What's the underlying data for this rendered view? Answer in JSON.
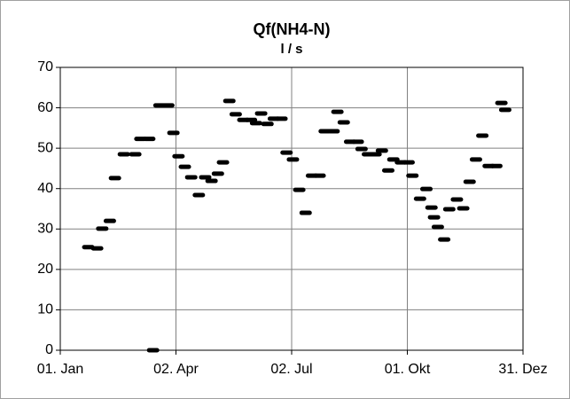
{
  "chart_data": {
    "type": "scatter",
    "title": "Qf(NH4-N)",
    "subtitle": "l / s",
    "color": "#000000",
    "grid": true,
    "x": [
      23,
      30,
      34,
      40,
      44,
      51,
      60,
      64,
      71,
      74,
      79,
      86,
      90,
      94,
      99,
      104,
      110,
      115,
      120,
      125,
      129,
      134,
      139,
      145,
      151,
      155,
      159,
      164,
      169,
      175,
      179,
      184,
      189,
      194,
      199,
      205,
      209,
      216,
      219,
      224,
      229,
      235,
      238,
      243,
      249,
      254,
      259,
      263,
      269,
      275,
      278,
      284,
      289,
      293,
      295,
      298,
      303,
      307,
      313,
      318,
      323,
      328,
      333,
      338,
      344,
      348,
      351
    ],
    "values": [
      25.5,
      25.2,
      30.1,
      32.0,
      42.6,
      48.5,
      48.5,
      52.3,
      52.3,
      0,
      60.6,
      60.6,
      53.8,
      48.0,
      45.4,
      42.8,
      38.4,
      42.8,
      41.9,
      43.7,
      46.5,
      61.7,
      58.4,
      57.0,
      57.0,
      56.2,
      58.6,
      56.0,
      57.3,
      57.3,
      48.9,
      47.2,
      39.7,
      34.0,
      43.2,
      43.2,
      54.2,
      54.2,
      59.0,
      56.4,
      51.6,
      51.6,
      49.8,
      48.5,
      48.5,
      49.4,
      44.5,
      47.2,
      46.5,
      46.5,
      43.2,
      37.5,
      39.9,
      35.3,
      32.9,
      30.5,
      27.4,
      34.9,
      37.3,
      35.1,
      41.7,
      47.2,
      53.1,
      45.6,
      45.6,
      61.2,
      59.5
    ],
    "xlim": [
      1,
      365
    ],
    "xticks": [
      {
        "value": 1,
        "label": "01. Jan"
      },
      {
        "value": 92,
        "label": "02. Apr"
      },
      {
        "value": 183,
        "label": "02. Jul"
      },
      {
        "value": 274,
        "label": "01. Okt"
      },
      {
        "value": 365,
        "label": "31. Dez"
      }
    ],
    "ylim": [
      0,
      70
    ],
    "yticks": [
      0,
      10,
      20,
      30,
      40,
      50,
      60,
      70
    ]
  }
}
